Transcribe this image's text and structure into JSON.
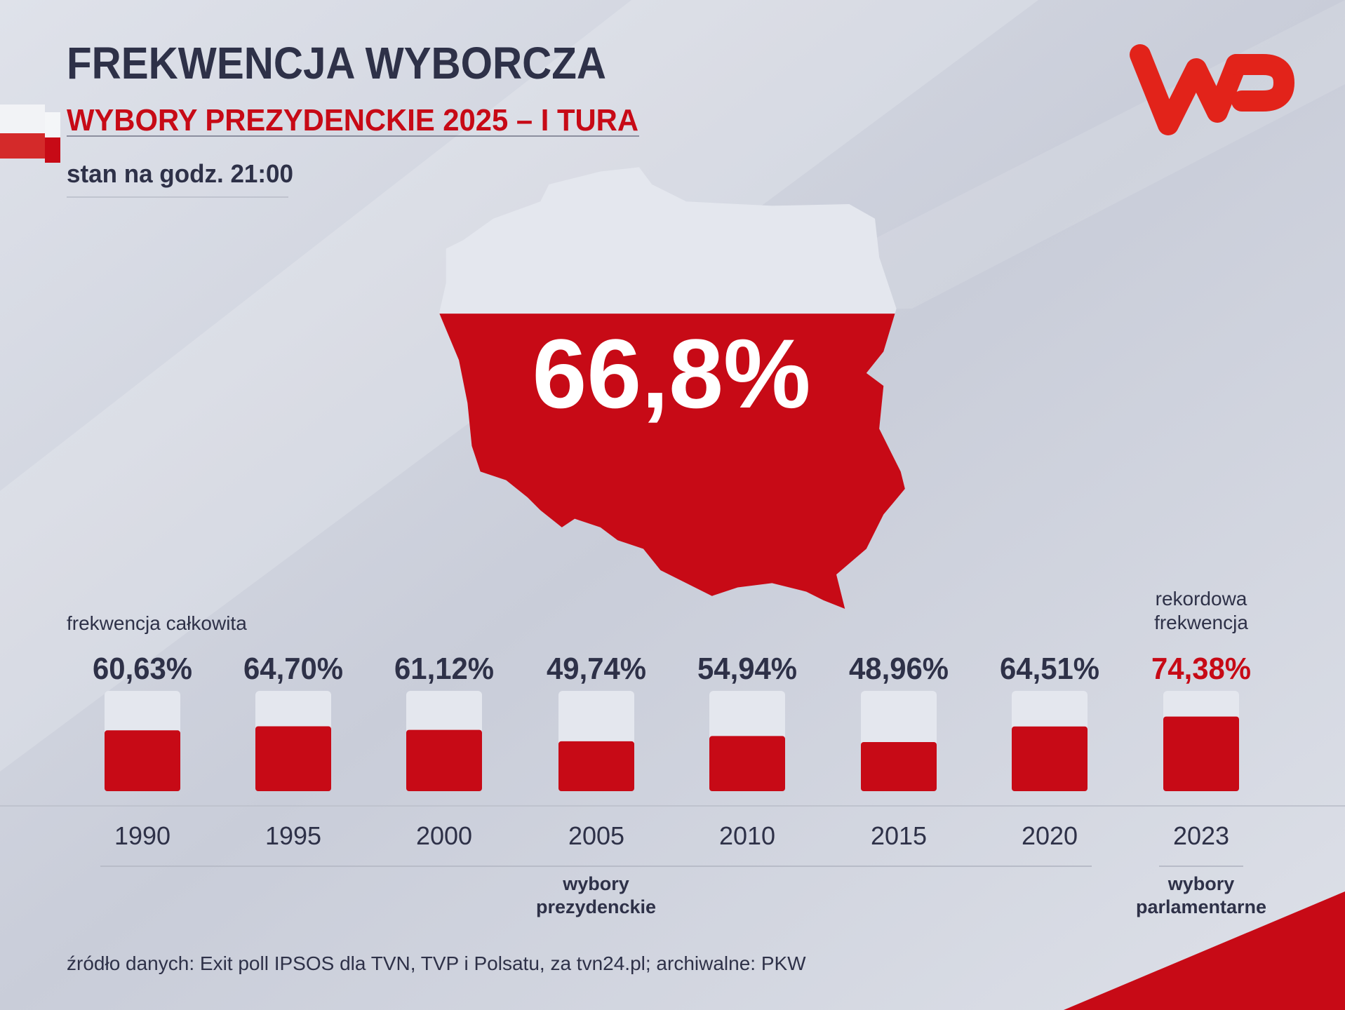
{
  "chart_data": {
    "type": "bar",
    "title": "FREKWENCJA WYBORCZA",
    "subtitle": "WYBORY PREZYDENCKIE 2025 – I TURA",
    "note": "stan na godz. 21:00",
    "headline": {
      "value": 66.8,
      "label": "66,8%"
    },
    "y_label": "frekwencja całkowita",
    "annotation": "rekordowa frekwencja",
    "categories": [
      "1990",
      "1995",
      "2000",
      "2005",
      "2010",
      "2015",
      "2020",
      "2023"
    ],
    "values": [
      60.63,
      64.7,
      61.12,
      49.74,
      54.94,
      48.96,
      64.51,
      74.38
    ],
    "value_labels": [
      "60,63%",
      "64,70%",
      "61,12%",
      "49,74%",
      "54,94%",
      "48,96%",
      "64,51%",
      "74,38%"
    ],
    "value_label_colors": [
      "#2e3148",
      "#2e3148",
      "#2e3148",
      "#2e3148",
      "#2e3148",
      "#2e3148",
      "#2e3148",
      "#c70a16"
    ],
    "color": "#c70a16",
    "track_color": "#e4e7ee",
    "ylim": [
      0,
      100
    ],
    "groups": [
      {
        "name": "wybory prezydenckie",
        "size": 7
      },
      {
        "name": "wybory parlamentarne",
        "size": 1
      }
    ],
    "source": "źródło danych: Exit poll IPSOS dla TVN, TVP i Polsatu, za tvn24.pl; archiwalne: PKW"
  }
}
